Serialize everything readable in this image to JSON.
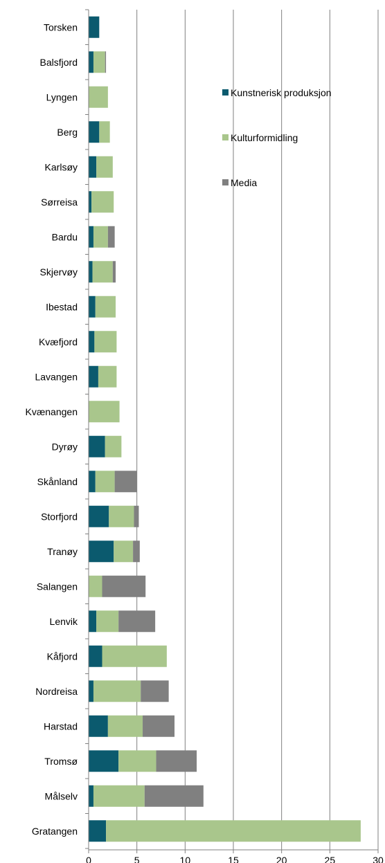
{
  "chart_data": {
    "type": "bar",
    "orientation": "horizontal",
    "stacked": true,
    "title": "",
    "xlabel": "",
    "ylabel": "",
    "xlim": [
      0,
      30
    ],
    "xticks": [
      0,
      5,
      10,
      15,
      20,
      25,
      30
    ],
    "grid": "vertical major gridlines",
    "legend_position": "top-right",
    "categories": [
      "Torsken",
      "Balsfjord",
      "Lyngen",
      "Berg",
      "Karlsøy",
      "Sørreisa",
      "Bardu",
      "Skjervøy",
      "Ibestad",
      "Kvæfjord",
      "Lavangen",
      "Kvænangen",
      "Dyrøy",
      "Skånland",
      "Storfjord",
      "Tranøy",
      "Salangen",
      "Lenvik",
      "Kåfjord",
      "Nordreisa",
      "Harstad",
      "Tromsø",
      "Målselv",
      "Gratangen"
    ],
    "series": [
      {
        "name": "Kunstnerisk produksjon",
        "color": "#0B5A6E",
        "values": [
          1.1,
          0.5,
          0.0,
          1.1,
          0.8,
          0.3,
          0.5,
          0.4,
          0.7,
          0.6,
          1.0,
          0.0,
          1.7,
          0.7,
          2.1,
          2.6,
          0.0,
          0.8,
          1.4,
          0.5,
          2.0,
          3.1,
          0.5,
          1.8
        ]
      },
      {
        "name": "Kulturformidling",
        "color": "#A9C68C",
        "values": [
          0.0,
          1.2,
          2.0,
          1.1,
          1.7,
          2.3,
          1.5,
          2.1,
          2.1,
          2.3,
          1.9,
          3.2,
          1.7,
          2.0,
          2.6,
          2.0,
          1.4,
          2.3,
          6.7,
          4.9,
          3.6,
          3.9,
          5.3,
          26.4
        ]
      },
      {
        "name": "Media",
        "color": "#808080",
        "values": [
          0.0,
          0.1,
          0.0,
          0.0,
          0.0,
          0.0,
          0.7,
          0.3,
          0.0,
          0.0,
          0.0,
          0.0,
          0.0,
          2.3,
          0.5,
          0.7,
          4.5,
          3.8,
          0.0,
          2.9,
          3.3,
          4.2,
          6.1,
          0.0
        ]
      }
    ]
  }
}
